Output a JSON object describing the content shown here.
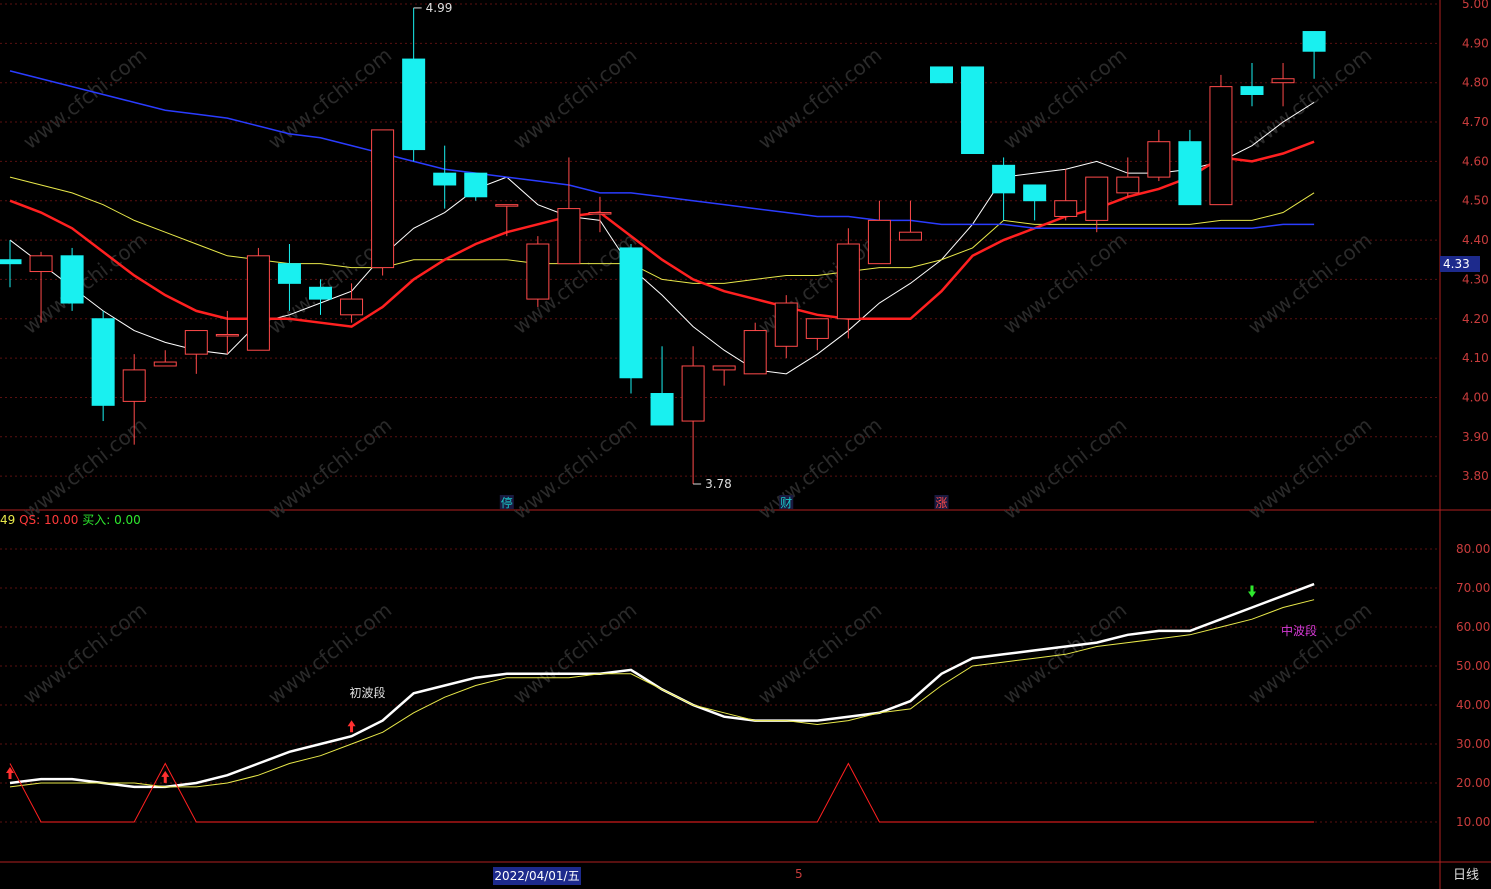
{
  "chart_data": [
    {
      "type": "candlestick",
      "panel": "price",
      "ylim": [
        3.72,
        5.0
      ],
      "y_ticks": [
        "5.00",
        "4.90",
        "4.80",
        "4.70",
        "4.60",
        "4.50",
        "4.40",
        "4.30",
        "4.20",
        "4.10",
        "4.00",
        "3.90",
        "3.80"
      ],
      "current_price": "4.33",
      "high_annotation": "4.99",
      "low_annotation": "3.78",
      "event_markers": [
        "停",
        "财",
        "涨"
      ],
      "candles": [
        {
          "o": 4.35,
          "h": 4.4,
          "l": 4.28,
          "c": 4.34
        },
        {
          "o": 4.32,
          "h": 4.37,
          "l": 4.19,
          "c": 4.36
        },
        {
          "o": 4.36,
          "h": 4.38,
          "l": 4.22,
          "c": 4.24
        },
        {
          "o": 4.2,
          "h": 4.22,
          "l": 3.94,
          "c": 3.98
        },
        {
          "o": 3.99,
          "h": 4.11,
          "l": 3.88,
          "c": 4.07
        },
        {
          "o": 4.08,
          "h": 4.12,
          "l": 4.08,
          "c": 4.09
        },
        {
          "o": 4.11,
          "h": 4.17,
          "l": 4.06,
          "c": 4.17
        },
        {
          "o": 4.16,
          "h": 4.22,
          "l": 4.11,
          "c": 4.16
        },
        {
          "o": 4.12,
          "h": 4.38,
          "l": 4.12,
          "c": 4.36
        },
        {
          "o": 4.34,
          "h": 4.39,
          "l": 4.22,
          "c": 4.29
        },
        {
          "o": 4.28,
          "h": 4.3,
          "l": 4.21,
          "c": 4.25
        },
        {
          "o": 4.21,
          "h": 4.29,
          "l": 4.19,
          "c": 4.25
        },
        {
          "o": 4.33,
          "h": 4.68,
          "l": 4.31,
          "c": 4.68
        },
        {
          "o": 4.86,
          "h": 4.99,
          "l": 4.6,
          "c": 4.63
        },
        {
          "o": 4.57,
          "h": 4.64,
          "l": 4.48,
          "c": 4.54
        },
        {
          "o": 4.57,
          "h": 4.57,
          "l": 4.5,
          "c": 4.51
        },
        {
          "o": 4.49,
          "h": 4.49,
          "l": 4.41,
          "c": 4.49
        },
        {
          "o": 4.25,
          "h": 4.41,
          "l": 4.23,
          "c": 4.39
        },
        {
          "o": 4.34,
          "h": 4.61,
          "l": 4.34,
          "c": 4.48
        },
        {
          "o": 4.47,
          "h": 4.51,
          "l": 4.42,
          "c": 4.47
        },
        {
          "o": 4.38,
          "h": 4.39,
          "l": 4.01,
          "c": 4.05
        },
        {
          "o": 4.01,
          "h": 4.13,
          "l": 3.93,
          "c": 3.93
        },
        {
          "o": 3.94,
          "h": 4.13,
          "l": 3.78,
          "c": 4.08
        },
        {
          "o": 4.07,
          "h": 4.08,
          "l": 4.03,
          "c": 4.08
        },
        {
          "o": 4.06,
          "h": 4.19,
          "l": 4.06,
          "c": 4.17
        },
        {
          "o": 4.13,
          "h": 4.26,
          "l": 4.1,
          "c": 4.24
        },
        {
          "o": 4.15,
          "h": 4.2,
          "l": 4.12,
          "c": 4.2
        },
        {
          "o": 4.2,
          "h": 4.43,
          "l": 4.15,
          "c": 4.39
        },
        {
          "o": 4.34,
          "h": 4.5,
          "l": 4.34,
          "c": 4.45
        },
        {
          "o": 4.4,
          "h": 4.5,
          "l": 4.4,
          "c": 4.42
        },
        {
          "o": 4.84,
          "h": 4.84,
          "l": 4.8,
          "c": 4.8
        },
        {
          "o": 4.84,
          "h": 4.84,
          "l": 4.62,
          "c": 4.62
        },
        {
          "o": 4.59,
          "h": 4.61,
          "l": 4.45,
          "c": 4.52
        },
        {
          "o": 4.54,
          "h": 4.54,
          "l": 4.45,
          "c": 4.5
        },
        {
          "o": 4.46,
          "h": 4.58,
          "l": 4.45,
          "c": 4.5
        },
        {
          "o": 4.45,
          "h": 4.56,
          "l": 4.42,
          "c": 4.56
        },
        {
          "o": 4.52,
          "h": 4.61,
          "l": 4.51,
          "c": 4.56
        },
        {
          "o": 4.56,
          "h": 4.68,
          "l": 4.55,
          "c": 4.65
        },
        {
          "o": 4.65,
          "h": 4.68,
          "l": 4.49,
          "c": 4.49
        },
        {
          "o": 4.49,
          "h": 4.82,
          "l": 4.49,
          "c": 4.79
        },
        {
          "o": 4.79,
          "h": 4.85,
          "l": 4.74,
          "c": 4.77
        },
        {
          "o": 4.8,
          "h": 4.85,
          "l": 4.74,
          "c": 4.81
        },
        {
          "o": 4.93,
          "h": 4.93,
          "l": 4.81,
          "c": 4.88
        }
      ],
      "series": [
        {
          "color": "#ffffff",
          "values": [
            4.4,
            4.34,
            4.28,
            4.22,
            4.17,
            4.14,
            4.12,
            4.11,
            4.19,
            4.21,
            4.24,
            4.27,
            4.36,
            4.43,
            4.47,
            4.53,
            4.56,
            4.49,
            4.46,
            4.45,
            4.33,
            4.26,
            4.18,
            4.12,
            4.07,
            4.06,
            4.11,
            4.17,
            4.24,
            4.29,
            4.35,
            4.44,
            4.56,
            4.57,
            4.58,
            4.6,
            4.57,
            4.57,
            4.58,
            4.6,
            4.64,
            4.7,
            4.75
          ]
        },
        {
          "color": "#e8e84a",
          "values": [
            4.56,
            4.54,
            4.52,
            4.49,
            4.45,
            4.42,
            4.39,
            4.36,
            4.35,
            4.34,
            4.34,
            4.33,
            4.33,
            4.35,
            4.35,
            4.35,
            4.35,
            4.34,
            4.34,
            4.34,
            4.34,
            4.3,
            4.29,
            4.29,
            4.3,
            4.31,
            4.31,
            4.32,
            4.33,
            4.33,
            4.35,
            4.38,
            4.45,
            4.44,
            4.44,
            4.44,
            4.44,
            4.44,
            4.44,
            4.45,
            4.45,
            4.47,
            4.52
          ]
        },
        {
          "color": "#ff2020",
          "values": [
            4.5,
            4.47,
            4.43,
            4.37,
            4.31,
            4.26,
            4.22,
            4.2,
            4.2,
            4.2,
            4.19,
            4.18,
            4.23,
            4.3,
            4.35,
            4.39,
            4.42,
            4.44,
            4.46,
            4.47,
            4.41,
            4.35,
            4.3,
            4.27,
            4.25,
            4.23,
            4.21,
            4.2,
            4.2,
            4.2,
            4.27,
            4.36,
            4.4,
            4.43,
            4.46,
            4.48,
            4.51,
            4.53,
            4.56,
            4.61,
            4.6,
            4.62,
            4.65
          ]
        },
        {
          "color": "#2a3cff",
          "values": [
            4.83,
            4.81,
            4.79,
            4.77,
            4.75,
            4.73,
            4.72,
            4.71,
            4.69,
            4.67,
            4.66,
            4.64,
            4.62,
            4.6,
            4.58,
            4.57,
            4.56,
            4.55,
            4.54,
            4.52,
            4.52,
            4.51,
            4.5,
            4.49,
            4.48,
            4.47,
            4.46,
            4.46,
            4.45,
            4.45,
            4.44,
            4.44,
            4.44,
            4.43,
            4.43,
            4.43,
            4.43,
            4.43,
            4.43,
            4.43,
            4.43,
            4.44,
            4.44
          ]
        }
      ]
    },
    {
      "type": "line",
      "panel": "indicator",
      "ylim": [
        0,
        90
      ],
      "y_ticks": [
        "80.00",
        "70.00",
        "60.00",
        "50.00",
        "40.00",
        "30.00",
        "20.00",
        "10.00"
      ],
      "legend": {
        "prefix": "49",
        "qs": "QS: 10.00",
        "buy": "买入: 0.00"
      },
      "annotations": [
        {
          "text": "初波段",
          "i": 11,
          "v": 42,
          "color": "#e0e0e0"
        },
        {
          "text": "中波段",
          "i": 41,
          "v": 58,
          "color": "#d63ad6"
        }
      ],
      "series": [
        {
          "color": "#ffffff",
          "values": [
            20,
            21,
            21,
            20,
            19,
            19,
            20,
            22,
            25,
            28,
            30,
            32,
            36,
            43,
            45,
            47,
            48,
            48,
            48,
            48,
            49,
            44,
            40,
            37,
            36,
            36,
            36,
            37,
            38,
            41,
            48,
            52,
            53,
            54,
            55,
            56,
            58,
            59,
            59,
            62,
            65,
            68,
            71
          ]
        },
        {
          "color": "#e8e84a",
          "values": [
            19,
            20,
            20,
            20,
            20,
            19,
            19,
            20,
            22,
            25,
            27,
            30,
            33,
            38,
            42,
            45,
            47,
            47,
            47,
            48,
            48,
            44,
            40,
            38,
            36,
            36,
            35,
            36,
            38,
            39,
            45,
            50,
            51,
            52,
            53,
            55,
            56,
            57,
            58,
            60,
            62,
            65,
            67
          ]
        },
        {
          "color": "#ff2020",
          "values": [
            25,
            10,
            10,
            10,
            10,
            25,
            10,
            10,
            10,
            10,
            10,
            10,
            10,
            10,
            10,
            10,
            10,
            10,
            10,
            10,
            10,
            10,
            10,
            10,
            10,
            10,
            10,
            25,
            10,
            10,
            10,
            10,
            10,
            10,
            10,
            10,
            10,
            10,
            10,
            10,
            10,
            10,
            10
          ]
        }
      ],
      "up_arrows": [
        0,
        5,
        11
      ],
      "down_arrows": [
        40
      ]
    }
  ],
  "status_bar": {
    "date": "2022/04/01/五",
    "mark": "5",
    "period": "日线"
  },
  "watermark": "www.cfchi.com"
}
